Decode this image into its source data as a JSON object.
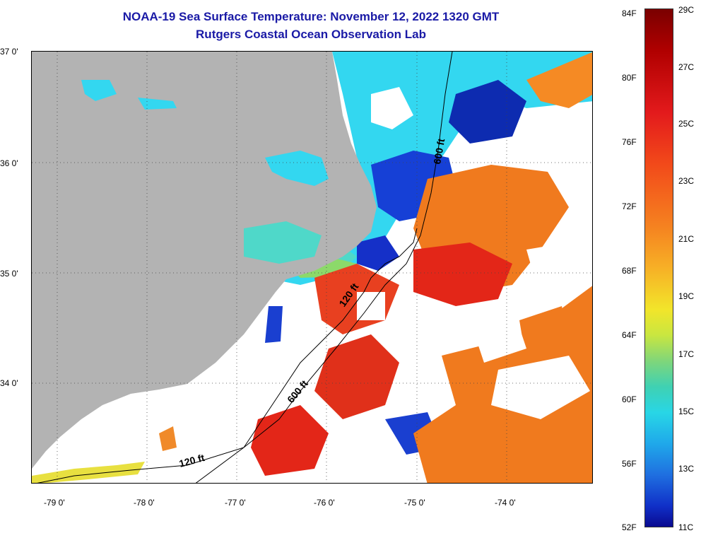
{
  "title": {
    "line1": "NOAA-19 Sea Surface Temperature:  November 12, 2022 1320 GMT",
    "line2": "Rutgers Coastal Ocean Observation Lab"
  },
  "map": {
    "lat_labels": [
      "37 0'",
      "36 0'",
      "35 0'",
      "34 0'"
    ],
    "lon_labels": [
      "-79 0'",
      "-78 0'",
      "-77 0'",
      "-76 0'",
      "-75 0'",
      "-74 0'"
    ],
    "contours": {
      "shelf_120": "120 ft",
      "slope_600": "600 ft"
    },
    "colors": {
      "land": "#b3b3b3",
      "cloud": "#ffffff",
      "cold": "#0a1fc8",
      "cool": "#33d7f0",
      "warm": "#f07a1e",
      "hot": "#e32618"
    }
  },
  "colorbar": {
    "fahrenheit": [
      "84F",
      "80F",
      "76F",
      "72F",
      "68F",
      "64F",
      "60F",
      "56F",
      "52F"
    ],
    "celsius": [
      "29C",
      "27C",
      "25C",
      "23C",
      "21C",
      "19C",
      "17C",
      "15C",
      "13C",
      "11C"
    ]
  }
}
